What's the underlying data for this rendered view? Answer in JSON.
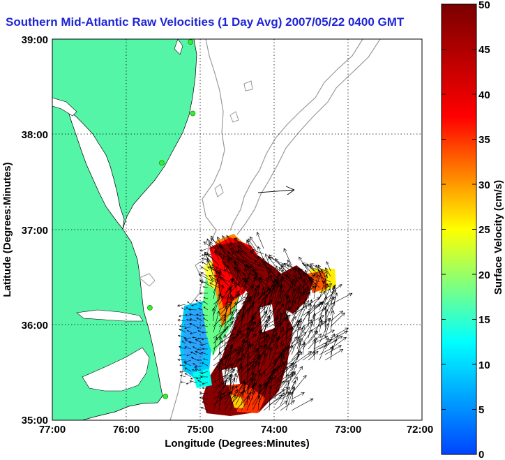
{
  "chart_data": {
    "type": "vector-field-map",
    "title": "Southern Mid-Atlantic Raw Velocities (1 Day Avg) 2007/05/22 0400 GMT",
    "xlabel": "Longitude (Degrees:Minutes)",
    "ylabel": "Latitude (Degrees:Minutes)",
    "x_ticks": [
      "77:00",
      "76:00",
      "75:00",
      "74:00",
      "73:00",
      "72:00"
    ],
    "y_ticks": [
      "39:00",
      "38:00",
      "37:00",
      "36:00",
      "35:00"
    ],
    "x_range": [
      -77,
      -72
    ],
    "y_range": [
      35,
      39
    ],
    "grid": "dotted",
    "colorbar": {
      "label": "Surface Velocity (cm/s)",
      "ticks": [
        "50",
        "45",
        "40",
        "35",
        "30",
        "25",
        "20",
        "15",
        "10",
        "5",
        "0"
      ],
      "range": [
        0,
        50
      ],
      "colormap": [
        "#0044ff",
        "#00ffff",
        "#ffff00",
        "#ff0000",
        "#7a0000"
      ]
    },
    "colors": {
      "land": "#55f5a8",
      "coastline": "#000000",
      "bathymetry": "#999999",
      "vectors": "#000000",
      "stations": "#33ee33"
    },
    "stations": [
      {
        "lon": -75.13,
        "lat": 38.97
      },
      {
        "lon": -75.1,
        "lat": 38.22
      },
      {
        "lon": -75.52,
        "lat": 37.7
      },
      {
        "lon": -75.68,
        "lat": 36.18
      },
      {
        "lon": -75.47,
        "lat": 35.25
      }
    ],
    "legend_vector": {
      "lon": -73.75,
      "lat": 37.4,
      "u": 0.23,
      "v": 0.0
    }
  }
}
